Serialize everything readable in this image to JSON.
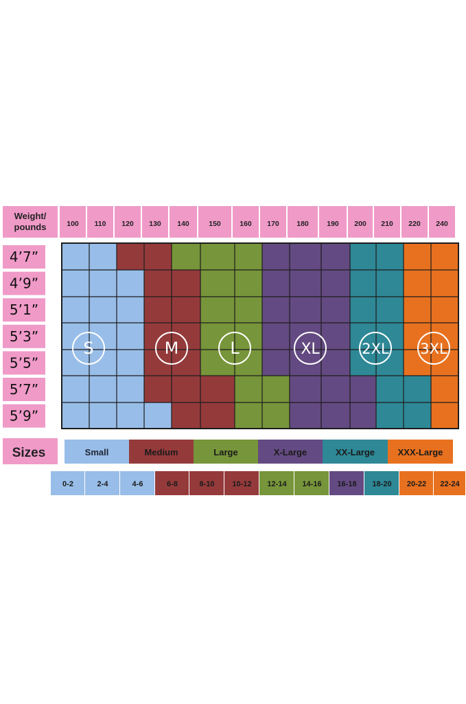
{
  "chart_data": {
    "type": "heatmap",
    "weight_header": "Weight/ pounds",
    "weights": [
      "100",
      "110",
      "120",
      "130",
      "140",
      "150",
      "160",
      "170",
      "180",
      "190",
      "200",
      "210",
      "220",
      "240"
    ],
    "heights": [
      "4’7”",
      "4’9”",
      "5’1”",
      "5’3”",
      "5’5”",
      "5’7”",
      "5’9”"
    ],
    "sizes": [
      {
        "key": "S",
        "circle_label": "S",
        "legend": "Small",
        "color": "#98bde8"
      },
      {
        "key": "M",
        "circle_label": "M",
        "legend": "Medium",
        "color": "#953a3b"
      },
      {
        "key": "L",
        "circle_label": "L",
        "legend": "Large",
        "color": "#77953a"
      },
      {
        "key": "XL",
        "circle_label": "XL",
        "legend": "X-Large",
        "color": "#644a82"
      },
      {
        "key": "2XL",
        "circle_label": "2XL",
        "legend": "XX-Large",
        "color": "#2e8896"
      },
      {
        "key": "3XL",
        "circle_label": "3XL",
        "legend": "XXX-Large",
        "color": "#e8711f"
      }
    ],
    "grid": [
      [
        "S",
        "S",
        "M",
        "M",
        "L",
        "L",
        "L",
        "XL",
        "XL",
        "XL",
        "2XL",
        "2XL",
        "3XL",
        "3XL"
      ],
      [
        "S",
        "S",
        "S",
        "M",
        "M",
        "L",
        "L",
        "XL",
        "XL",
        "XL",
        "2XL",
        "2XL",
        "3XL",
        "3XL"
      ],
      [
        "S",
        "S",
        "S",
        "M",
        "M",
        "L",
        "L",
        "XL",
        "XL",
        "XL",
        "2XL",
        "2XL",
        "3XL",
        "3XL"
      ],
      [
        "S",
        "S",
        "S",
        "M",
        "M",
        "L",
        "L",
        "XL",
        "XL",
        "XL",
        "2XL",
        "2XL",
        "3XL",
        "3XL"
      ],
      [
        "S",
        "S",
        "S",
        "M",
        "M",
        "L",
        "L",
        "XL",
        "XL",
        "XL",
        "2XL",
        "2XL",
        "3XL",
        "3XL"
      ],
      [
        "S",
        "S",
        "S",
        "M",
        "M",
        "M",
        "L",
        "L",
        "XL",
        "XL",
        "XL",
        "2XL",
        "2XL",
        "3XL"
      ],
      [
        "S",
        "S",
        "S",
        "S",
        "M",
        "M",
        "L",
        "L",
        "XL",
        "XL",
        "XL",
        "2XL",
        "2XL",
        "3XL"
      ]
    ],
    "sizes_label": "Sizes",
    "numeric_sizes": [
      {
        "label": "0-2",
        "size": "S"
      },
      {
        "label": "2-4",
        "size": "S"
      },
      {
        "label": "4-6",
        "size": "S"
      },
      {
        "label": "6-8",
        "size": "M"
      },
      {
        "label": "8-10",
        "size": "M"
      },
      {
        "label": "10-12",
        "size": "M"
      },
      {
        "label": "12-14",
        "size": "L"
      },
      {
        "label": "14-16",
        "size": "L"
      },
      {
        "label": "16-18",
        "size": "XL"
      },
      {
        "label": "18-20",
        "size": "2XL"
      },
      {
        "label": "20-22",
        "size": "3XL"
      },
      {
        "label": "22-24",
        "size": "3XL"
      }
    ]
  }
}
